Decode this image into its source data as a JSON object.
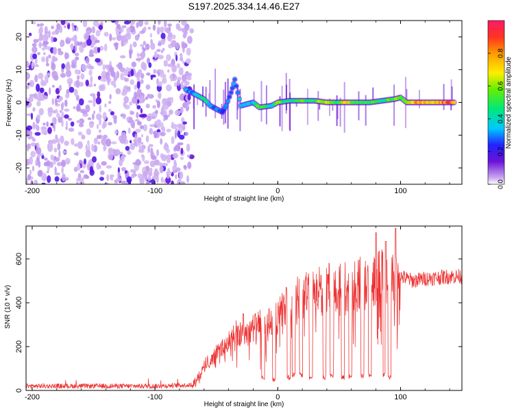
{
  "title": "S197.2025.334.14.46.E27",
  "chart_data": [
    {
      "type": "heatmap",
      "xlabel": "Height of straight line (km)",
      "ylabel": "Frequency (Hz)",
      "xlim": [
        -205,
        150
      ],
      "ylim": [
        -25,
        25
      ],
      "xticks": [
        -200,
        -100,
        0,
        100
      ],
      "yticks": [
        -20,
        -10,
        0,
        10,
        20
      ],
      "colorbar": {
        "label": "Normalized spectral amplitude",
        "range": [
          0,
          1
        ],
        "ticks": [
          0.0,
          0.2,
          0.4,
          0.6,
          0.8
        ],
        "tick_labels": [
          "0.0",
          "0.2",
          "0.4",
          "0.6",
          "0.8"
        ]
      },
      "noise_region": {
        "x_range": [
          -205,
          -70
        ],
        "y_range": [
          -25,
          25
        ],
        "amplitude": 0.12
      },
      "signal_track": [
        {
          "x": -75,
          "f": 4,
          "a": 0.35
        },
        {
          "x": -70,
          "f": 3,
          "a": 0.3
        },
        {
          "x": -65,
          "f": 2,
          "a": 0.4
        },
        {
          "x": -60,
          "f": 1,
          "a": 0.45
        },
        {
          "x": -55,
          "f": -1,
          "a": 0.35
        },
        {
          "x": -50,
          "f": -2,
          "a": 0.3
        },
        {
          "x": -45,
          "f": -3,
          "a": 0.25
        },
        {
          "x": -42,
          "f": -1,
          "a": 0.3
        },
        {
          "x": -38,
          "f": 3,
          "a": 0.3
        },
        {
          "x": -35,
          "f": 7,
          "a": 0.3
        },
        {
          "x": -30,
          "f": -1,
          "a": 0.35
        },
        {
          "x": -20,
          "f": 0,
          "a": 0.35
        },
        {
          "x": -15,
          "f": -1.5,
          "a": 0.6
        },
        {
          "x": -5,
          "f": -1,
          "a": 0.4
        },
        {
          "x": 0,
          "f": 0,
          "a": 0.6
        },
        {
          "x": 10,
          "f": 0.5,
          "a": 0.45
        },
        {
          "x": 20,
          "f": 0.5,
          "a": 0.55
        },
        {
          "x": 30,
          "f": 0.5,
          "a": 0.5
        },
        {
          "x": 40,
          "f": 0,
          "a": 0.75
        },
        {
          "x": 50,
          "f": 0,
          "a": 0.5
        },
        {
          "x": 55,
          "f": 0,
          "a": 0.8
        },
        {
          "x": 65,
          "f": 0,
          "a": 0.5
        },
        {
          "x": 75,
          "f": 0,
          "a": 0.55
        },
        {
          "x": 85,
          "f": 0.5,
          "a": 0.45
        },
        {
          "x": 95,
          "f": 1,
          "a": 0.6
        },
        {
          "x": 100,
          "f": 1.5,
          "a": 0.5
        },
        {
          "x": 105,
          "f": 0,
          "a": 0.65
        },
        {
          "x": 115,
          "f": 0,
          "a": 0.8
        },
        {
          "x": 125,
          "f": 0,
          "a": 0.7
        },
        {
          "x": 135,
          "f": 0,
          "a": 0.85
        },
        {
          "x": 145,
          "f": 0,
          "a": 0.9
        }
      ]
    },
    {
      "type": "line",
      "xlabel": "Height of straight line (km)",
      "ylabel": "SNR (10 * v/v)",
      "xlim": [
        -205,
        150
      ],
      "ylim": [
        0,
        750
      ],
      "xticks": [
        -200,
        -100,
        0,
        100
      ],
      "yticks": [
        0,
        200,
        400,
        600
      ],
      "color": "#ee3333",
      "envelope": [
        {
          "x": -205,
          "snr": 20
        },
        {
          "x": -180,
          "snr": 20
        },
        {
          "x": -150,
          "snr": 20
        },
        {
          "x": -100,
          "snr": 20
        },
        {
          "x": -70,
          "snr": 25
        },
        {
          "x": -65,
          "snr": 60
        },
        {
          "x": -55,
          "snr": 150
        },
        {
          "x": -45,
          "snr": 200
        },
        {
          "x": -35,
          "snr": 250
        },
        {
          "x": -25,
          "snr": 280
        },
        {
          "x": -15,
          "snr": 300
        },
        {
          "x": -5,
          "snr": 320
        },
        {
          "x": 5,
          "snr": 370
        },
        {
          "x": 15,
          "snr": 420
        },
        {
          "x": 25,
          "snr": 460
        },
        {
          "x": 35,
          "snr": 470
        },
        {
          "x": 45,
          "snr": 490
        },
        {
          "x": 55,
          "snr": 500
        },
        {
          "x": 65,
          "snr": 510
        },
        {
          "x": 75,
          "snr": 500
        },
        {
          "x": 80,
          "snr": 560
        },
        {
          "x": 90,
          "snr": 560
        },
        {
          "x": 100,
          "snr": 520
        },
        {
          "x": 110,
          "snr": 500
        },
        {
          "x": 120,
          "snr": 510
        },
        {
          "x": 130,
          "snr": 515
        },
        {
          "x": 140,
          "snr": 520
        },
        {
          "x": 150,
          "snr": 520
        }
      ],
      "dropouts": [
        {
          "x": -12,
          "snr": 50
        },
        {
          "x": -3,
          "snr": 40
        },
        {
          "x": 9,
          "snr": 50
        },
        {
          "x": 13,
          "snr": 60
        },
        {
          "x": 19,
          "snr": 60
        },
        {
          "x": 27,
          "snr": 50
        },
        {
          "x": 38,
          "snr": 50
        },
        {
          "x": 44,
          "snr": 60
        },
        {
          "x": 53,
          "snr": 50
        },
        {
          "x": 59,
          "snr": 55
        },
        {
          "x": 69,
          "snr": 55
        },
        {
          "x": 75,
          "snr": 60
        },
        {
          "x": 87,
          "snr": 60
        },
        {
          "x": 91,
          "snr": 50
        }
      ],
      "peaks": [
        {
          "x": -28,
          "snr": 350
        },
        {
          "x": 7,
          "snr": 470
        },
        {
          "x": 80,
          "snr": 720
        },
        {
          "x": 88,
          "snr": 680
        },
        {
          "x": 96,
          "snr": 740
        }
      ]
    }
  ]
}
